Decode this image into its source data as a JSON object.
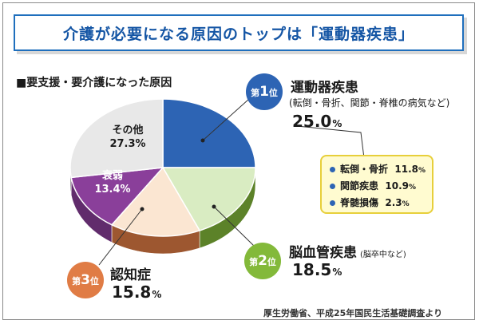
{
  "title": "介護が必要になる原因のトップは「運動器疾患」",
  "subtitle": "■要支援・要介護になった原因",
  "source": "厚生労働省、平成25年国民生活基礎調査より",
  "badges": [
    {
      "rank": "1",
      "suffix": "位"
    },
    {
      "rank": "2",
      "suffix": "位"
    },
    {
      "rank": "3",
      "suffix": "位"
    }
  ],
  "callouts": {
    "first": {
      "name": "運動器疾患",
      "note": "(転倒・骨折、関節・脊椎の病気など)",
      "value": "25.0",
      "unit": "%"
    },
    "second": {
      "name": "脳血管疾患",
      "note": "(脳卒中など)",
      "value": "18.5",
      "unit": "%"
    },
    "third": {
      "name": "認知症",
      "value": "15.8",
      "unit": "%"
    }
  },
  "breakdown": [
    {
      "label": "転倒・骨折",
      "value": "11.8",
      "unit": "%"
    },
    {
      "label": "関節疾患",
      "value": "10.9",
      "unit": "%"
    },
    {
      "label": "脊髄損傷",
      "value": "2.3",
      "unit": "%"
    }
  ],
  "chart_data": {
    "type": "pie",
    "title": "要支援・要介護になった原因",
    "slices": [
      {
        "name": "運動器疾患",
        "value": 25.0,
        "color": "#2d64b4"
      },
      {
        "name": "脳血管疾患",
        "value": 18.5,
        "color": "#83b93a"
      },
      {
        "name": "認知症",
        "value": 15.8,
        "color": "#e07c45"
      },
      {
        "name": "衰弱",
        "value": 13.4,
        "color": "#8a3f9a"
      },
      {
        "name": "その他",
        "value": 27.3,
        "color": "#9a9a9a"
      }
    ],
    "inner_labels": [
      {
        "name": "その他",
        "value": "27.3%"
      },
      {
        "name": "衰弱",
        "value": "13.4%"
      }
    ]
  }
}
